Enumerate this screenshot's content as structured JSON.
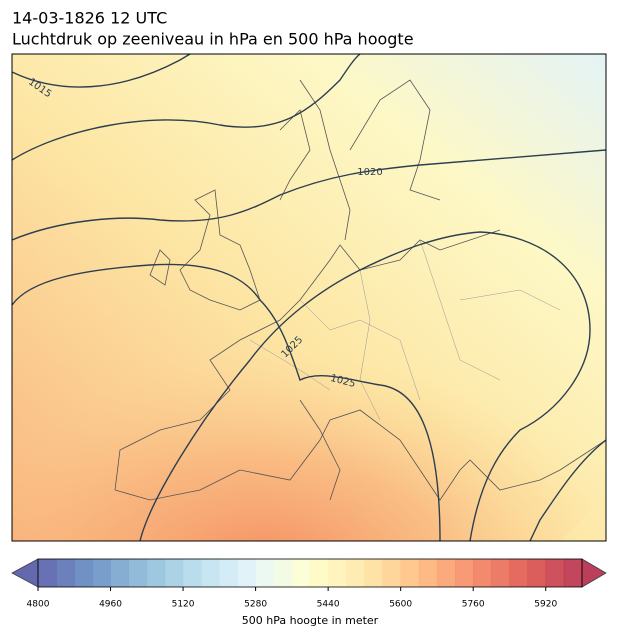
{
  "header": {
    "title_line1": "14-03-1826 12 UTC",
    "title_line2": "Luchtdruk op zeeniveau in hPa en 500 hPa hoogte"
  },
  "map": {
    "isobar_labels": [
      1015,
      1020,
      1025,
      1025
    ]
  },
  "colorbar": {
    "range": [
      4800,
      6000
    ],
    "step": 40,
    "ticks": [
      4800,
      4960,
      5120,
      5280,
      5440,
      5600,
      5760,
      5920
    ],
    "palette": [
      "#313695",
      "#4575b4",
      "#74add1",
      "#abd9e9",
      "#e0f3f8",
      "#ffffbf",
      "#fee090",
      "#fdae61",
      "#f46d43",
      "#d73027",
      "#a50026"
    ],
    "label": "500 hPa hoogte in meter"
  }
}
